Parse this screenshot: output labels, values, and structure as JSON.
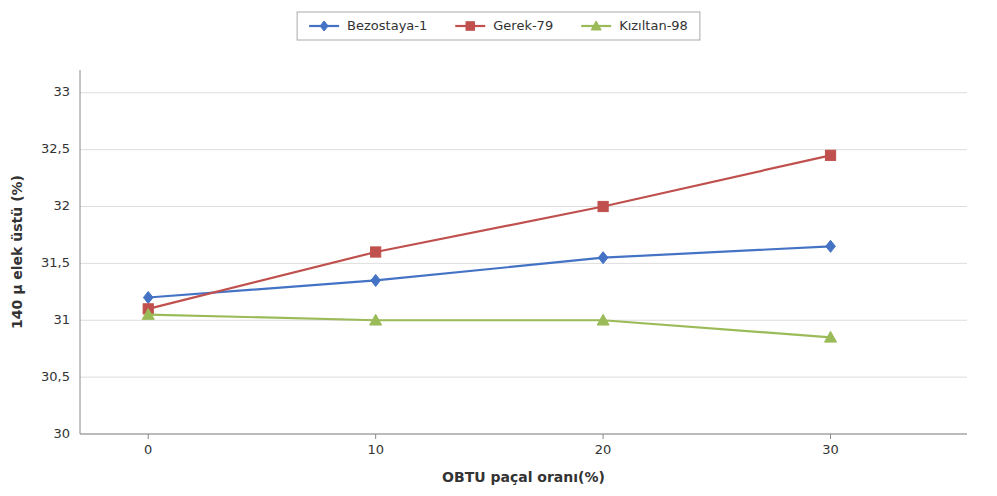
{
  "chart_data": {
    "type": "line",
    "x": [
      0,
      10,
      20,
      30
    ],
    "series": [
      {
        "name": "Bezostaya-1",
        "color": "#4472C4",
        "marker": "diamond",
        "values": [
          31.2,
          31.35,
          31.55,
          31.65
        ]
      },
      {
        "name": "Gerek-79",
        "color": "#C0504D",
        "marker": "square",
        "values": [
          31.1,
          31.6,
          32.0,
          32.45
        ]
      },
      {
        "name": "Kızıltan-98",
        "color": "#9BBB59",
        "marker": "triangle",
        "values": [
          31.05,
          31.0,
          31.0,
          30.85
        ]
      }
    ],
    "x_label": "OBTU paçal oranı(%)",
    "y_label": "140 μ elek üstü (%)",
    "xlim": [
      -3,
      36
    ],
    "ylim": [
      30,
      33.2
    ],
    "xticks": [
      0,
      10,
      20,
      30
    ],
    "yticks": [
      30,
      {
        "value": 30.5,
        "label": "30,5"
      },
      31,
      {
        "value": 31.5,
        "label": "31,5"
      },
      32,
      {
        "value": 32.5,
        "label": "32,5"
      },
      33
    ],
    "grid": true,
    "legend": "top"
  }
}
